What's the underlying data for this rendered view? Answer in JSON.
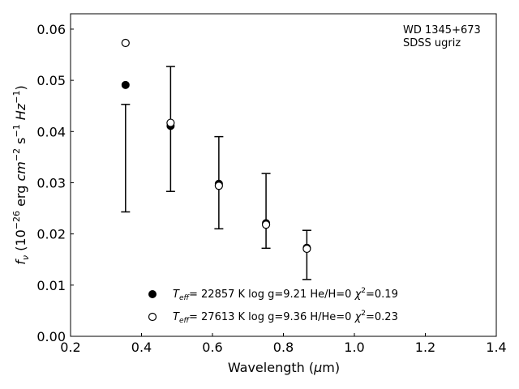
{
  "chart_data": {
    "type": "scatter",
    "annotation_lines": [
      "WD 1345+673",
      "SDSS ugriz"
    ],
    "annotation_placement": "top-right",
    "xlabel": {
      "prefix": "Wavelength (",
      "greek": "μ",
      "suffix": "m)"
    },
    "ylabel": {
      "f": "f",
      "nu": "ν",
      "open": " (10",
      "exp1": "−26",
      "mid": " erg ",
      "cm": "cm",
      "exp2": "−2",
      "s": " s",
      "exp3": "−1",
      "hz": " Hz",
      "exp4": "−1",
      "close": ")"
    },
    "xlim": [
      0.2,
      1.4
    ],
    "ylim": [
      0.0,
      0.063
    ],
    "xticks": [
      "0.2",
      "0.4",
      "0.6",
      "0.8",
      "1.0",
      "1.2",
      "1.4"
    ],
    "yticks": [
      "0.00",
      "0.01",
      "0.02",
      "0.03",
      "0.04",
      "0.05",
      "0.06"
    ],
    "grid": false,
    "legend_placement": "bottom-center",
    "observed": {
      "x": [
        0.355,
        0.482,
        0.618,
        0.751,
        0.866
      ],
      "y": [
        0.0348,
        0.0405,
        0.03,
        0.0245,
        0.0159
      ],
      "yerr_low": [
        0.0243,
        0.0283,
        0.021,
        0.0172,
        0.0111
      ],
      "yerr_high": [
        0.0453,
        0.0527,
        0.039,
        0.0318,
        0.0207
      ]
    },
    "series": [
      {
        "marker": "filled-circle",
        "color": "#000000",
        "x": [
          0.355,
          0.482,
          0.618,
          0.751,
          0.866
        ],
        "values": [
          0.0491,
          0.0411,
          0.0298,
          0.0221,
          0.0173
        ],
        "label": {
          "t": "T",
          "sub": "eff",
          "rest": "= 22857 K  log g=9.21  He/H=0  ",
          "chi": "χ",
          "sup": "2",
          "end": "=0.19"
        }
      },
      {
        "marker": "open-circle",
        "color": "#000000",
        "x": [
          0.355,
          0.482,
          0.618,
          0.751,
          0.866
        ],
        "values": [
          0.0573,
          0.0417,
          0.0294,
          0.0218,
          0.0171
        ],
        "label": {
          "t": "T",
          "sub": "eff",
          "rest": "= 27613 K  log g=9.36  H/He=0  ",
          "chi": "χ",
          "sup": "2",
          "end": "=0.23"
        }
      }
    ]
  }
}
